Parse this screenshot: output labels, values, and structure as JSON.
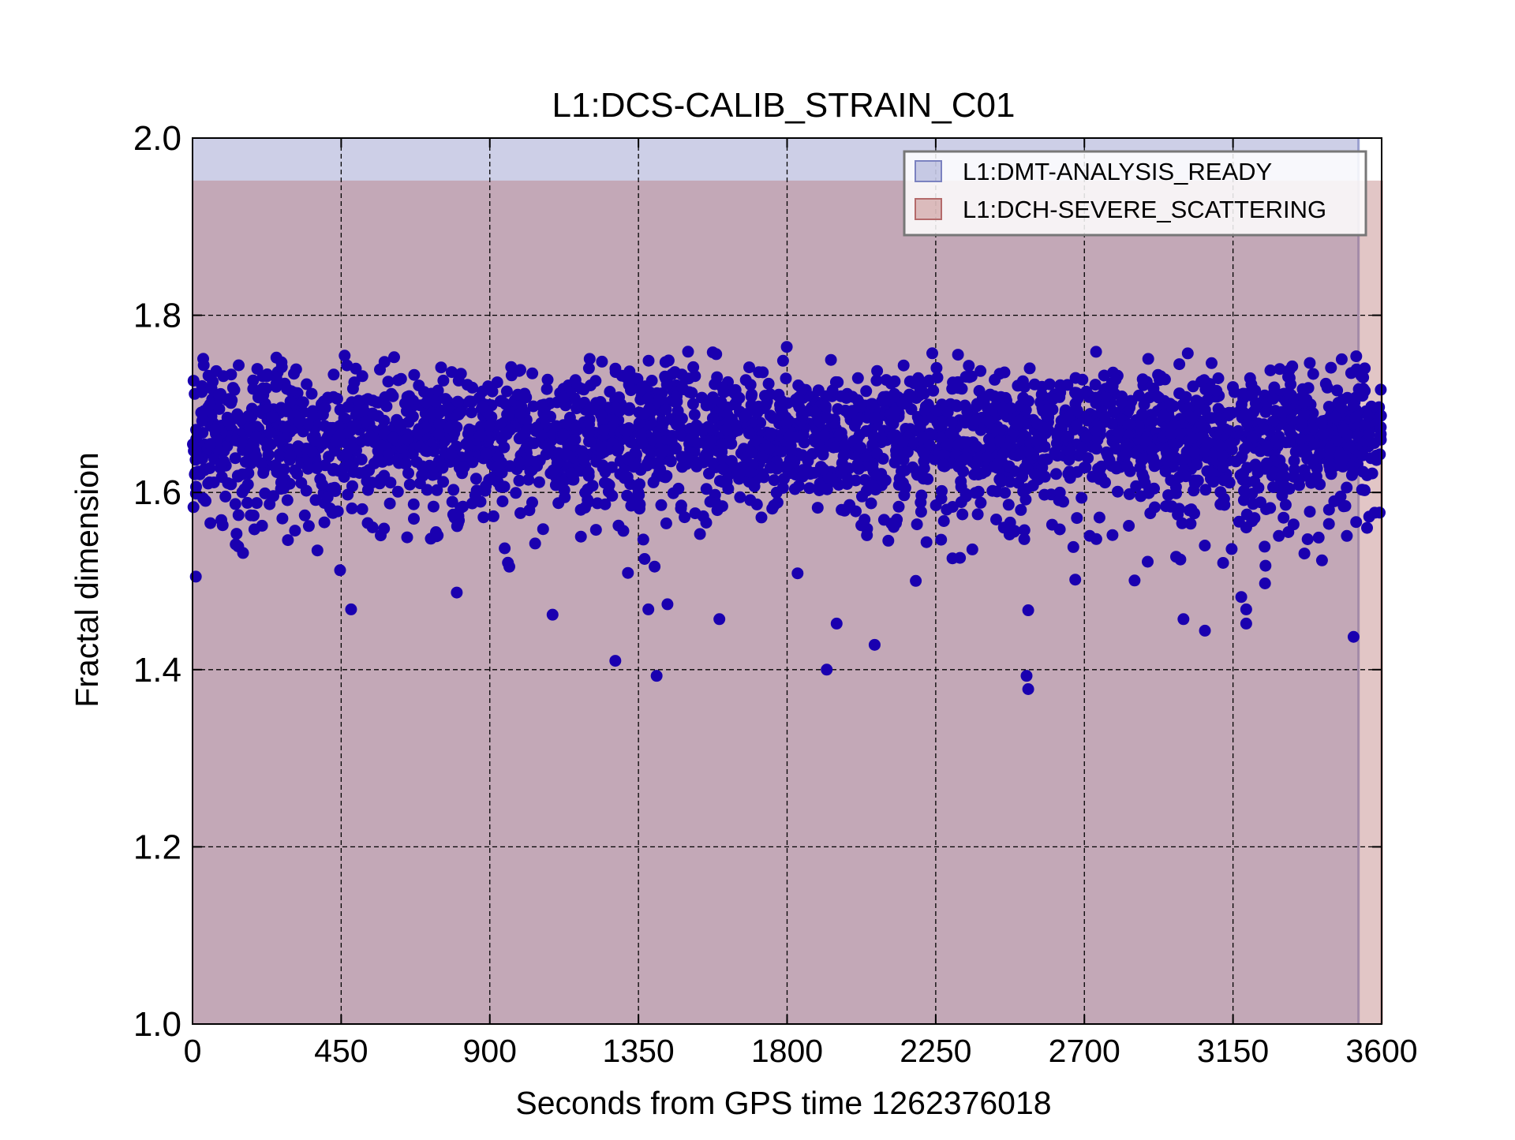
{
  "chart_data": {
    "type": "scatter",
    "title": "L1:DCS-CALIB_STRAIN_C01",
    "xlabel": "Seconds from GPS time 1262376018",
    "ylabel": "Fractal dimension",
    "xlim": [
      0,
      3600
    ],
    "ylim": [
      1.0,
      2.0
    ],
    "xticks": [
      0,
      450,
      900,
      1350,
      1800,
      2250,
      2700,
      3150,
      3600
    ],
    "yticks": [
      1.0,
      1.2,
      1.4,
      1.6,
      1.8,
      2.0
    ],
    "xtick_labels": [
      "0",
      "450",
      "900",
      "1350",
      "1800",
      "2250",
      "2700",
      "3150",
      "3600"
    ],
    "ytick_labels": [
      "1.0",
      "1.2",
      "1.4",
      "1.6",
      "1.8",
      "2.0"
    ],
    "grid": true,
    "legend_position": "top-right",
    "marker_color": "#1a00b0",
    "shaded_segments": [
      {
        "name": "L1:DMT-ANALYSIS_READY",
        "color": "#7b82c0",
        "x_range": [
          0,
          3530
        ],
        "y_range": [
          1.0,
          2.0
        ]
      },
      {
        "name": "L1:DCH-SEVERE_SCATTERING",
        "color": "#b46a6a",
        "x_range": [
          0,
          3600
        ],
        "y_range": [
          1.0,
          1.952
        ]
      }
    ],
    "series_summary": {
      "band_center": 1.675,
      "band_upper_max": 1.765,
      "band_lower_typical": 1.52
    },
    "outliers": [
      {
        "x": 10,
        "y": 1.505
      },
      {
        "x": 1280,
        "y": 1.41
      },
      {
        "x": 1405,
        "y": 1.393
      },
      {
        "x": 1920,
        "y": 1.4
      },
      {
        "x": 1950,
        "y": 1.452
      },
      {
        "x": 2065,
        "y": 1.428
      },
      {
        "x": 2525,
        "y": 1.393
      },
      {
        "x": 2530,
        "y": 1.378
      },
      {
        "x": 2530,
        "y": 1.467
      },
      {
        "x": 3000,
        "y": 1.457
      },
      {
        "x": 3065,
        "y": 1.444
      },
      {
        "x": 3190,
        "y": 1.452
      },
      {
        "x": 3190,
        "y": 1.468
      },
      {
        "x": 3175,
        "y": 1.482
      },
      {
        "x": 3515,
        "y": 1.437
      },
      {
        "x": 480,
        "y": 1.468
      },
      {
        "x": 1090,
        "y": 1.462
      },
      {
        "x": 1595,
        "y": 1.457
      },
      {
        "x": 1380,
        "y": 1.468
      },
      {
        "x": 800,
        "y": 1.487
      }
    ]
  }
}
